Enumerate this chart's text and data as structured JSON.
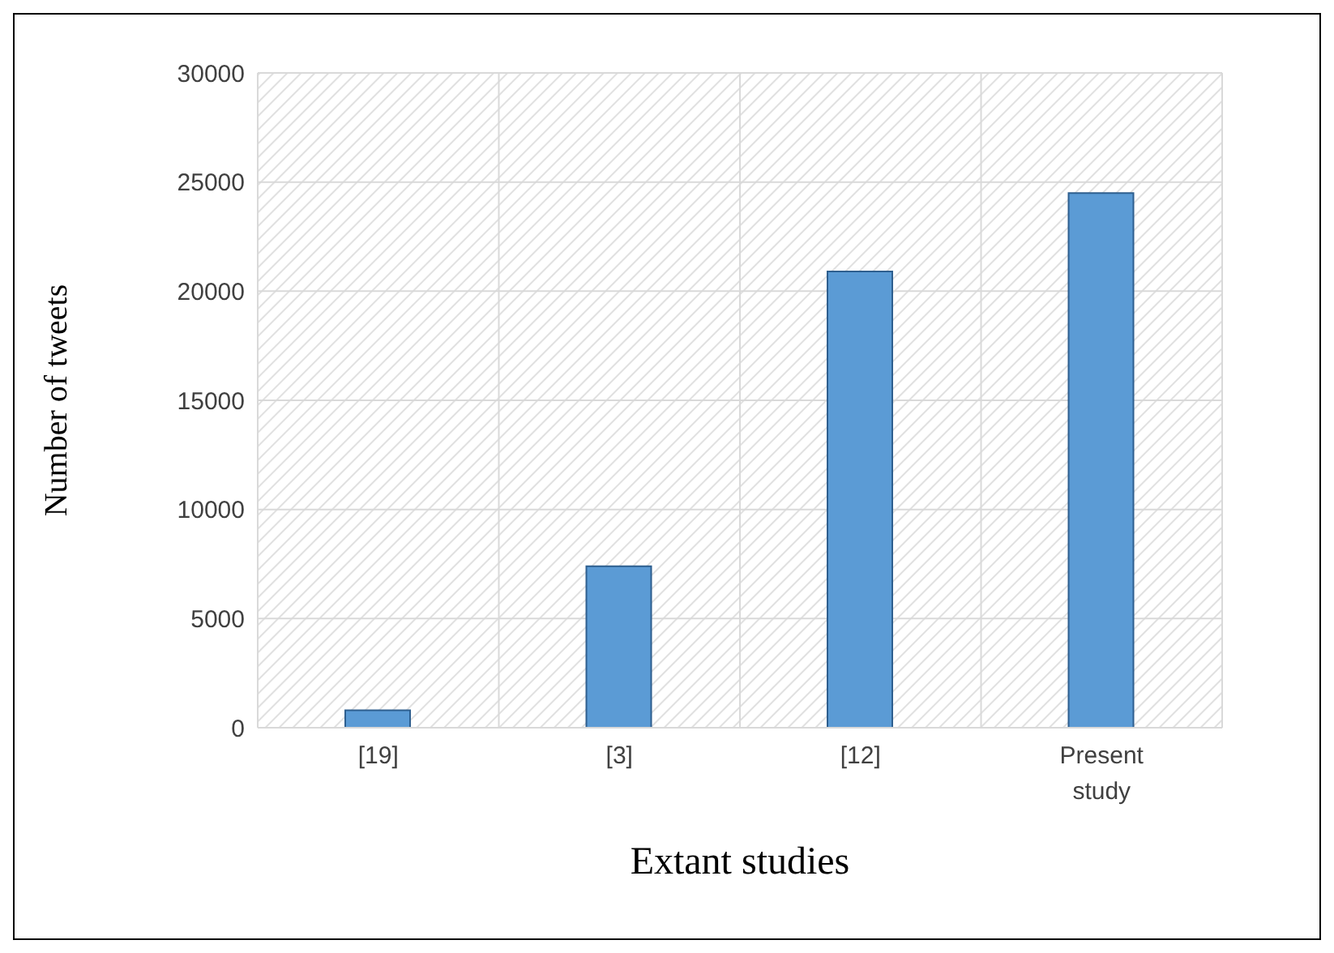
{
  "chart_data": {
    "type": "bar",
    "xlabel": "Extant studies",
    "ylabel": "Number of tweets",
    "categories": [
      "[19]",
      "[3]",
      "[12]",
      "Present study"
    ],
    "values": [
      800,
      7400,
      20900,
      24500
    ],
    "color": "#5b9bd5",
    "ylim": [
      0,
      30000
    ],
    "yticks": [
      0,
      5000,
      10000,
      15000,
      20000,
      25000,
      30000
    ],
    "grid": true
  }
}
